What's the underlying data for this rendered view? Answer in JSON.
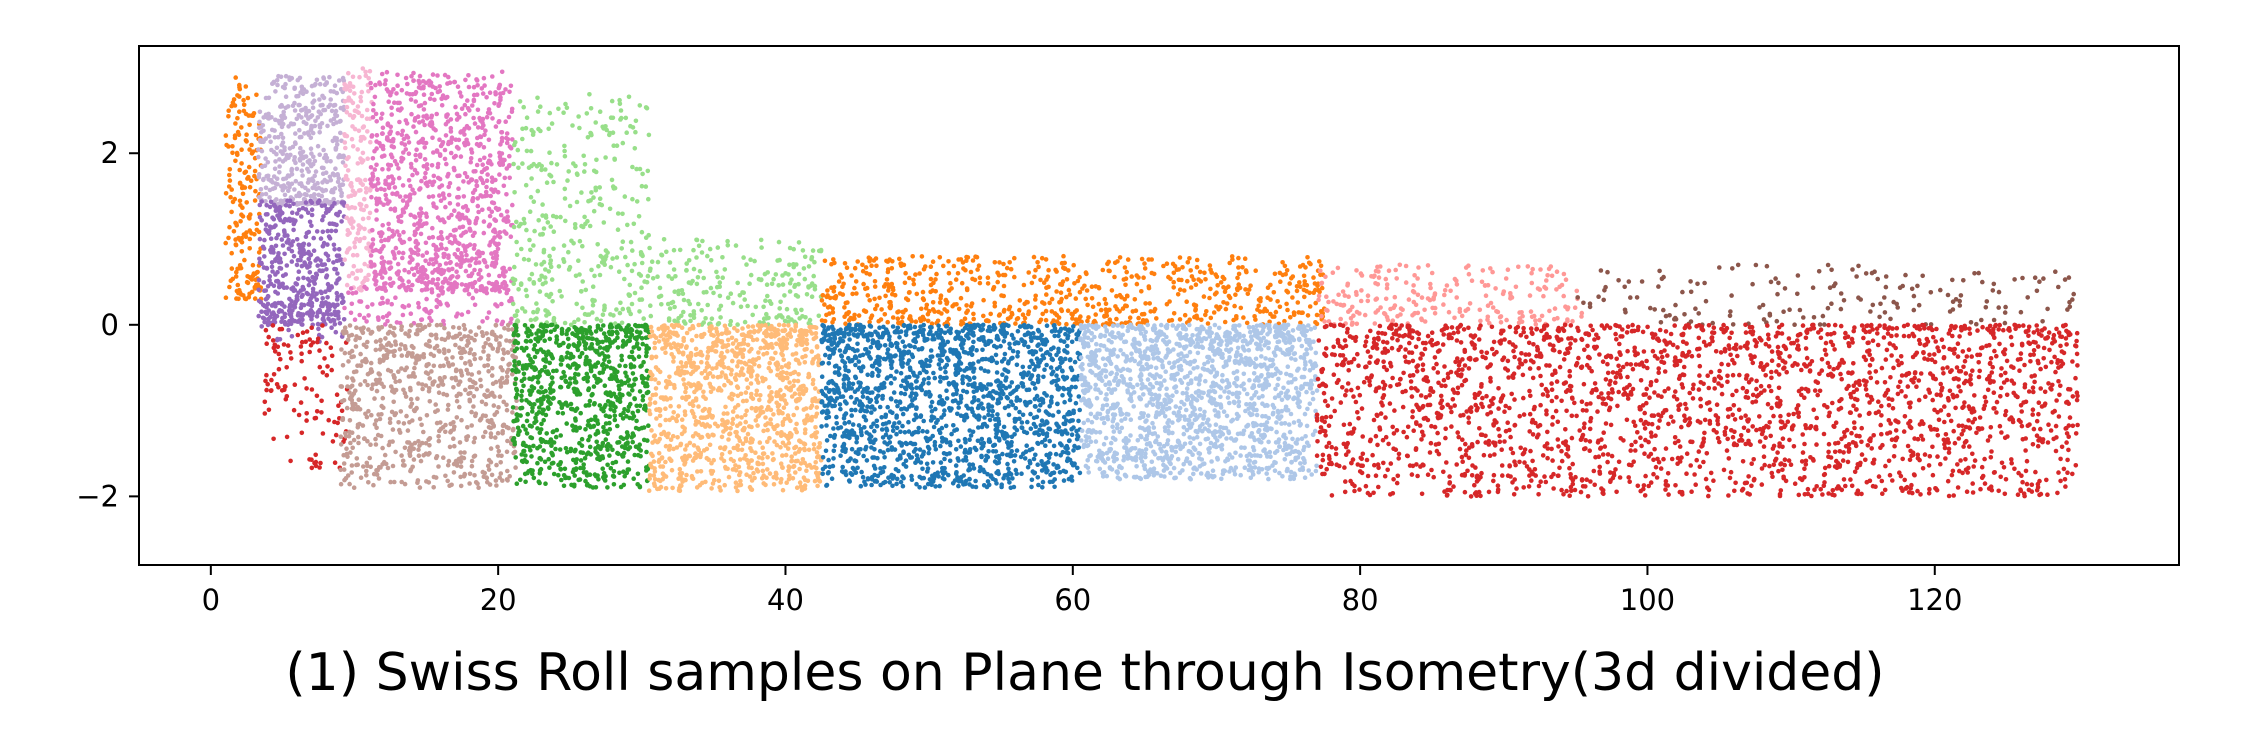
{
  "chart_data": {
    "type": "scatter",
    "caption": "(1) Swiss Roll samples on Plane through Isometry(3d divided)",
    "xlim": [
      -5,
      137
    ],
    "ylim": [
      -2.8,
      3.25
    ],
    "xticks": [
      0,
      20,
      40,
      60,
      80,
      100,
      120
    ],
    "yticks": [
      -2,
      0,
      2
    ],
    "grid": false,
    "legend": "none",
    "point_size": 2.3,
    "clusters": [
      {
        "color": "#ff7f0e",
        "x": [
          1,
          3.5
        ],
        "y": [
          0.3,
          2.9
        ],
        "n": 180
      },
      {
        "color": "#c5b0d5",
        "x": [
          3.3,
          9.3
        ],
        "y": [
          1.4,
          2.9
        ],
        "n": 420
      },
      {
        "color": "#9467bd",
        "x": [
          3.3,
          9.3
        ],
        "y": [
          0.0,
          1.45
        ],
        "n": 420
      },
      {
        "color": "#9467bd",
        "x": [
          3.5,
          9.3
        ],
        "y": [
          -0.2,
          0.3
        ],
        "n": 50
      },
      {
        "color": "#f7b6d2",
        "x": [
          9.3,
          11.2
        ],
        "y": [
          0.4,
          3.0
        ],
        "n": 170
      },
      {
        "color": "#e377c2",
        "x": [
          11.1,
          21.0
        ],
        "y": [
          0.4,
          2.95
        ],
        "n": 950
      },
      {
        "color": "#e377c2",
        "x": [
          9.0,
          21.0
        ],
        "y": [
          0.0,
          0.5
        ],
        "n": 110
      },
      {
        "color": "#d62728",
        "x": [
          3.5,
          9.5
        ],
        "y": [
          -1.7,
          0.0
        ],
        "n": 110
      },
      {
        "color": "#c49c94",
        "x": [
          9.0,
          21.3
        ],
        "y": [
          -1.9,
          0.0
        ],
        "n": 720
      },
      {
        "color": "#98df8a",
        "x": [
          21.0,
          30.5
        ],
        "y": [
          0.0,
          2.7
        ],
        "n": 360
      },
      {
        "color": "#98df8a",
        "x": [
          30.5,
          42.5
        ],
        "y": [
          0.0,
          1.0
        ],
        "n": 220
      },
      {
        "color": "#2ca02c",
        "x": [
          21.0,
          30.5
        ],
        "y": [
          -1.9,
          0.0
        ],
        "n": 850
      },
      {
        "color": "#ffbb78",
        "x": [
          30.5,
          42.5
        ],
        "y": [
          -1.95,
          0.0
        ],
        "n": 1050
      },
      {
        "color": "#ff7f0e",
        "x": [
          42.5,
          77.5
        ],
        "y": [
          0.0,
          0.8
        ],
        "n": 700
      },
      {
        "color": "#1f77b4",
        "x": [
          42.5,
          60.5
        ],
        "y": [
          -1.9,
          0.0
        ],
        "n": 1650
      },
      {
        "color": "#aec7e8",
        "x": [
          60.5,
          77.0
        ],
        "y": [
          -1.8,
          0.0
        ],
        "n": 1550
      },
      {
        "color": "#ff9896",
        "x": [
          77.0,
          95.5
        ],
        "y": [
          0.0,
          0.7
        ],
        "n": 230
      },
      {
        "color": "#8c564b",
        "x": [
          95.0,
          130.0
        ],
        "y": [
          0.0,
          0.7
        ],
        "n": 170
      },
      {
        "color": "#d62728",
        "x": [
          77.0,
          130.0
        ],
        "y": [
          -2.0,
          0.0
        ],
        "n": 2400
      }
    ]
  }
}
